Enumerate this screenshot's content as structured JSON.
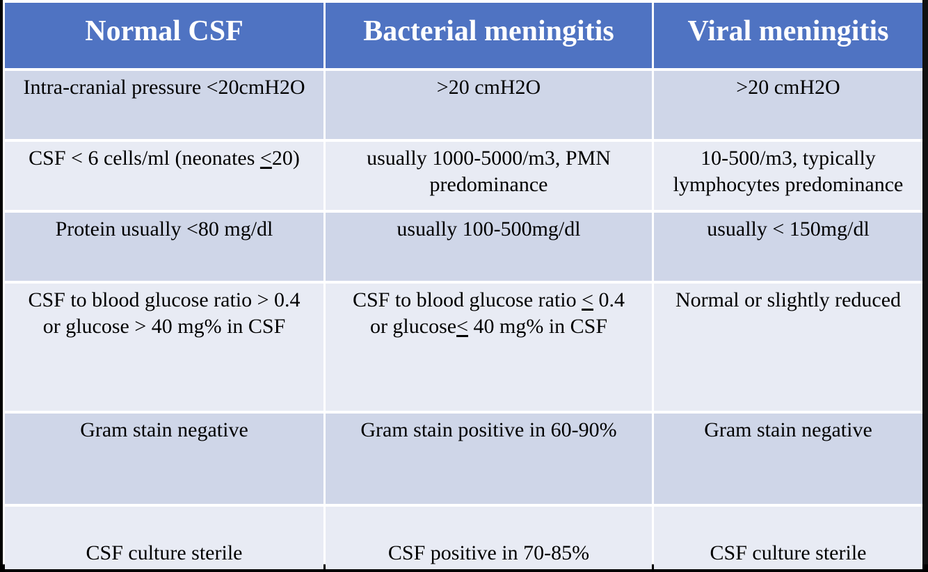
{
  "table": {
    "headers": [
      "Normal CSF",
      "Bacterial meningitis",
      "Viral meningitis"
    ],
    "rows": [
      {
        "normal": "Intra-cranial pressure <20cmH2O",
        "bacterial": ">20 cmH2O",
        "viral": ">20 cmH2O"
      },
      {
        "normal_pre": "CSF < 6 cells/ml (neonates ",
        "normal_le": "<",
        "normal_post": "20)",
        "bacterial_line1": "usually 1000-5000/m3, PMN",
        "bacterial_line2": "predominance",
        "viral_line1": "10-500/m3, typically",
        "viral_line2": "lymphocytes predominance"
      },
      {
        "normal": "Protein usually <80 mg/dl",
        "bacterial": "usually 100-500mg/dl",
        "viral": "usually < 150mg/dl"
      },
      {
        "normal_line1": "CSF to blood glucose ratio > 0.4",
        "normal_line2": "or glucose > 40 mg% in CSF",
        "bacterial_line1_pre": "CSF to blood glucose ratio ",
        "bacterial_line1_le": "<",
        "bacterial_line1_post": " 0.4",
        "bacterial_line2_pre": "or glucose",
        "bacterial_line2_le": "<",
        "bacterial_line2_post": " 40 mg% in CSF",
        "viral": "Normal or slightly reduced"
      },
      {
        "normal": "Gram stain negative",
        "bacterial": "Gram stain positive in 60-90%",
        "viral": "Gram stain negative"
      },
      {
        "normal": "CSF culture sterile",
        "bacterial": "CSF positive in 70-85%",
        "viral": "CSF culture sterile"
      }
    ]
  }
}
